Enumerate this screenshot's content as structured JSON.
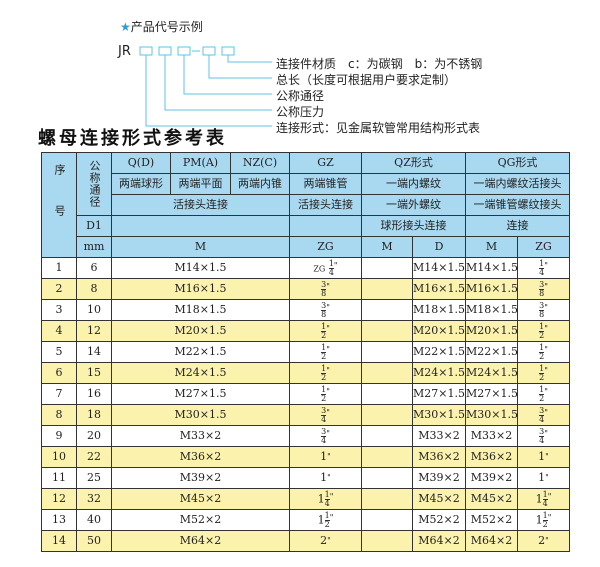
{
  "example": {
    "heading": "产品代号示例",
    "code_prefix": "JR",
    "labels": [
      "连接件材质　c：为碳钢　b：为不锈钢",
      "总长（长度可根据用户要求定制）",
      "公称通径",
      "公称压力",
      "连接形式：见金属软管常用结构形式表"
    ]
  },
  "title": "螺母连接形式参考表",
  "colors": {
    "header_bg": "#a9d9f1",
    "stripe": "#fbf2ae",
    "line": "#5ec3e6"
  },
  "header": {
    "seq": "序号",
    "dn": "公称通径",
    "q": "Q(D)",
    "pm": "PM(A)",
    "nz": "NZ(C)",
    "gz": "GZ",
    "qz": "QZ形式",
    "qg": "QG形式",
    "q2": "两端球形",
    "pm2": "两端平面",
    "nz2": "两端内锥",
    "gz2": "两端锥管",
    "qz2": "一端内螺纹",
    "qg2": "一端内螺纹活接头",
    "r3a": "活接头连接",
    "r3b": "活接头连接",
    "qz3": "一端外螺纹",
    "qg3": "一端锥管螺纹接头",
    "d1": "D1",
    "qz4": "球形接头连接",
    "qg4": "连接",
    "mm": "mm",
    "m": "M",
    "zg": "ZG",
    "qzm": "M",
    "qzd": "D",
    "qgm": "M",
    "qgzg": "ZG"
  },
  "rows": [
    {
      "n": "1",
      "d": "6",
      "m": "M14×1.5",
      "zg": {
        "pre": "ZG",
        "w": "",
        "num": "1",
        "den": "4"
      },
      "qzd": "M14×1.5",
      "qgm": "M14×1.5",
      "qgzg": {
        "w": "",
        "num": "1",
        "den": "4"
      }
    },
    {
      "n": "2",
      "d": "8",
      "m": "M16×1.5",
      "zg": {
        "pre": "",
        "w": "",
        "num": "3",
        "den": "8"
      },
      "qzd": "M16×1.5",
      "qgm": "M16×1.5",
      "qgzg": {
        "w": "",
        "num": "3",
        "den": "8"
      }
    },
    {
      "n": "3",
      "d": "10",
      "m": "M18×1.5",
      "zg": {
        "pre": "",
        "w": "",
        "num": "3",
        "den": "8"
      },
      "qzd": "M18×1.5",
      "qgm": "M18×1.5",
      "qgzg": {
        "w": "",
        "num": "3",
        "den": "8"
      }
    },
    {
      "n": "4",
      "d": "12",
      "m": "M20×1.5",
      "zg": {
        "pre": "",
        "w": "",
        "num": "1",
        "den": "2"
      },
      "qzd": "M20×1.5",
      "qgm": "M20×1.5",
      "qgzg": {
        "w": "",
        "num": "1",
        "den": "2"
      }
    },
    {
      "n": "5",
      "d": "14",
      "m": "M22×1.5",
      "zg": {
        "pre": "",
        "w": "",
        "num": "1",
        "den": "2"
      },
      "qzd": "M22×1.5",
      "qgm": "M22×1.5",
      "qgzg": {
        "w": "",
        "num": "1",
        "den": "2"
      }
    },
    {
      "n": "6",
      "d": "15",
      "m": "M24×1.5",
      "zg": {
        "pre": "",
        "w": "",
        "num": "1",
        "den": "2"
      },
      "qzd": "M24×1.5",
      "qgm": "M24×1.5",
      "qgzg": {
        "w": "",
        "num": "1",
        "den": "2"
      }
    },
    {
      "n": "7",
      "d": "16",
      "m": "M27×1.5",
      "zg": {
        "pre": "",
        "w": "",
        "num": "1",
        "den": "2"
      },
      "qzd": "M27×1.5",
      "qgm": "M27×1.5",
      "qgzg": {
        "w": "",
        "num": "1",
        "den": "2"
      }
    },
    {
      "n": "8",
      "d": "18",
      "m": "M30×1.5",
      "zg": {
        "pre": "",
        "w": "",
        "num": "3",
        "den": "4"
      },
      "qzd": "M30×1.5",
      "qgm": "M30×1.5",
      "qgzg": {
        "w": "",
        "num": "3",
        "den": "4"
      }
    },
    {
      "n": "9",
      "d": "20",
      "m": "M33×2",
      "zg": {
        "pre": "",
        "w": "",
        "num": "3",
        "den": "4"
      },
      "qzd": "M33×2",
      "qgm": "M33×2",
      "qgzg": {
        "w": "",
        "num": "3",
        "den": "4"
      }
    },
    {
      "n": "10",
      "d": "22",
      "m": "M36×2",
      "zg": {
        "pre": "",
        "w": "1",
        "num": "",
        "den": ""
      },
      "qzd": "M36×2",
      "qgm": "M36×2",
      "qgzg": {
        "w": "1",
        "num": "",
        "den": ""
      }
    },
    {
      "n": "11",
      "d": "25",
      "m": "M39×2",
      "zg": {
        "pre": "",
        "w": "1",
        "num": "",
        "den": ""
      },
      "qzd": "M39×2",
      "qgm": "M39×2",
      "qgzg": {
        "w": "1",
        "num": "",
        "den": ""
      }
    },
    {
      "n": "12",
      "d": "32",
      "m": "M45×2",
      "zg": {
        "pre": "",
        "w": "1",
        "num": "1",
        "den": "4"
      },
      "qzd": "M45×2",
      "qgm": "M45×2",
      "qgzg": {
        "w": "1",
        "num": "1",
        "den": "4"
      }
    },
    {
      "n": "13",
      "d": "40",
      "m": "M52×2",
      "zg": {
        "pre": "",
        "w": "1",
        "num": "1",
        "den": "2"
      },
      "qzd": "M52×2",
      "qgm": "M52×2",
      "qgzg": {
        "w": "1",
        "num": "1",
        "den": "2"
      }
    },
    {
      "n": "14",
      "d": "50",
      "m": "M64×2",
      "zg": {
        "pre": "",
        "w": "2",
        "num": "",
        "den": ""
      },
      "qzd": "M64×2",
      "qgm": "M64×2",
      "qgzg": {
        "w": "2",
        "num": "",
        "den": ""
      }
    }
  ]
}
